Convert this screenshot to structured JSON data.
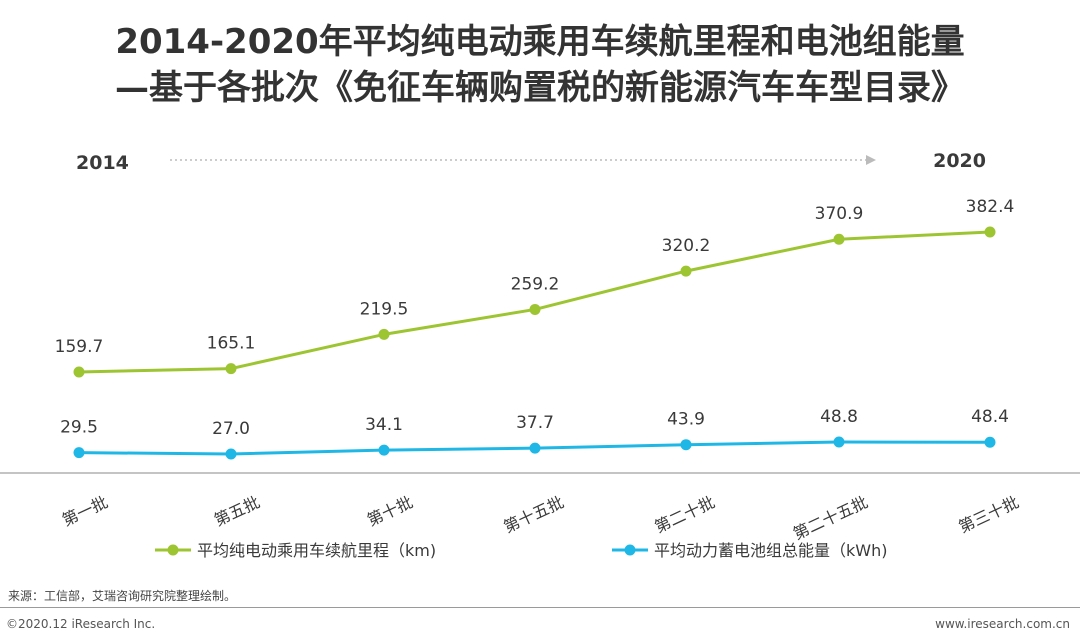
{
  "page": {
    "title_line1": "2014-2020年平均纯电动乘用车续航里程和电池组能量",
    "title_line2": "—基于各批次《免征车辆购置税的新能源汽车车型目录》",
    "source": "来源：工信部，艾瑞咨询研究院整理绘制。",
    "footer_left": "©2020.12 iResearch Inc.",
    "footer_right": "www.iresearch.com.cn"
  },
  "colors": {
    "range_series": "#9dc531",
    "battery_series": "#1fb8e6",
    "axis": "#888888",
    "arrow": "#bbbbbb"
  },
  "chart_data": {
    "type": "line",
    "timeline": {
      "start_label": "2014",
      "end_label": "2020"
    },
    "categories": [
      "第一批",
      "第五批",
      "第十批",
      "第十五批",
      "第二十批",
      "第二十五批",
      "第三十批"
    ],
    "series": [
      {
        "name": "平均纯电动乘用车续航里程（km)",
        "values": [
          159.7,
          165.1,
          219.5,
          259.2,
          320.2,
          370.9,
          382.4
        ],
        "labels": [
          "159.7",
          "165.1",
          "219.5",
          "259.2",
          "320.2",
          "370.9",
          "382.4"
        ]
      },
      {
        "name": "平均动力蓄电池组总能量（kWh)",
        "values": [
          29.5,
          27.0,
          34.1,
          37.7,
          43.9,
          48.8,
          48.4
        ],
        "labels": [
          "29.5",
          "27.0",
          "34.1",
          "37.7",
          "43.9",
          "48.8",
          "48.4"
        ]
      }
    ],
    "legend_position": "bottom",
    "grid": false
  }
}
